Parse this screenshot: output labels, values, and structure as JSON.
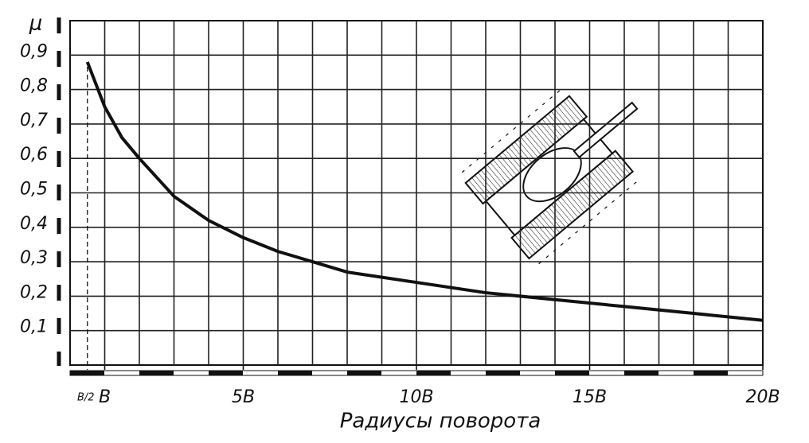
{
  "chart_data": {
    "type": "line",
    "y_label": "μ",
    "x_label": "Радиусы поворота",
    "x": [
      0.5,
      1,
      1.5,
      2,
      3,
      4,
      5,
      6,
      7,
      8,
      10,
      12,
      14,
      16,
      18,
      20
    ],
    "series": [
      {
        "name": "μ",
        "color": "#111111",
        "values": [
          0.88,
          0.75,
          0.66,
          0.6,
          0.49,
          0.42,
          0.37,
          0.33,
          0.3,
          0.27,
          0.24,
          0.21,
          0.19,
          0.17,
          0.15,
          0.13
        ]
      }
    ],
    "xlim": [
      0,
      20
    ],
    "xticks": [
      {
        "value": 0.5,
        "label": "B/2"
      },
      {
        "value": 1,
        "label": "B"
      },
      {
        "value": 5,
        "label": "5B"
      },
      {
        "value": 10,
        "label": "10B"
      },
      {
        "value": 15,
        "label": "15B"
      },
      {
        "value": 20,
        "label": "20B"
      }
    ],
    "ylim": [
      0,
      1
    ],
    "yticks": [
      {
        "value": 0.1,
        "label": "0,1"
      },
      {
        "value": 0.2,
        "label": "0,2"
      },
      {
        "value": 0.3,
        "label": "0,3"
      },
      {
        "value": 0.4,
        "label": "0,4"
      },
      {
        "value": 0.5,
        "label": "0,5"
      },
      {
        "value": 0.6,
        "label": "0,6"
      },
      {
        "value": 0.7,
        "label": "0,7"
      },
      {
        "value": 0.8,
        "label": "0,8"
      },
      {
        "value": 0.9,
        "label": "0,9"
      }
    ],
    "xgrid_step": 1,
    "grid": true
  }
}
